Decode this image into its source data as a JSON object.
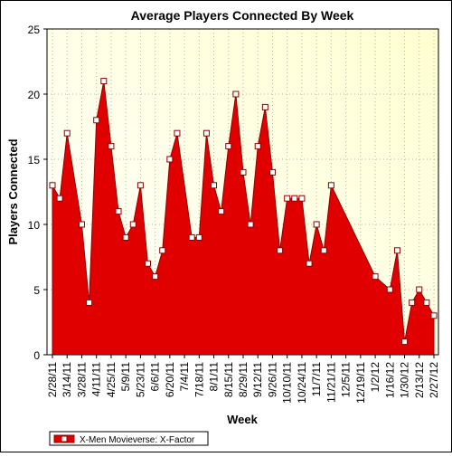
{
  "chart_data": {
    "type": "area",
    "title": "Average Players Connected By Week",
    "x_label": "Week",
    "y_label": "Players Connected",
    "x": [
      "2/28/11",
      "3/7/11",
      "3/14/11",
      "3/28/11",
      "4/4/11",
      "4/11/11",
      "4/18/11",
      "4/25/11",
      "5/2/11",
      "5/9/11",
      "5/16/11",
      "5/23/11",
      "5/30/11",
      "6/6/11",
      "6/13/11",
      "6/20/11",
      "6/27/11",
      "7/11/11",
      "7/18/11",
      "7/25/11",
      "8/1/11",
      "8/8/11",
      "8/15/11",
      "8/22/11",
      "8/29/11",
      "9/5/11",
      "9/12/11",
      "9/19/11",
      "9/26/11",
      "10/3/11",
      "10/10/11",
      "10/17/11",
      "10/24/11",
      "10/31/11",
      "11/7/11",
      "11/14/11",
      "11/21/11",
      "1/2/12",
      "1/16/12",
      "1/23/12",
      "1/30/12",
      "2/6/12",
      "2/13/12",
      "2/20/12",
      "2/27/12"
    ],
    "series": [
      {
        "name": "X-Men Movieverse: X-Factor",
        "color": "#e00000",
        "values": [
          13,
          12,
          17,
          10,
          4,
          18,
          21,
          16,
          11,
          9,
          10,
          13,
          7,
          6,
          8,
          15,
          17,
          9,
          9,
          17,
          13,
          11,
          16,
          20,
          14,
          10,
          16,
          19,
          14,
          8,
          12,
          12,
          12,
          7,
          10,
          8,
          13,
          6,
          5,
          8,
          1,
          4,
          5,
          4,
          3
        ]
      }
    ],
    "xlim": [
      "2/28/11",
      "2/27/12"
    ],
    "xticks": [
      "2/28/11",
      "3/14/11",
      "3/28/11",
      "4/11/11",
      "4/25/11",
      "5/9/11",
      "5/23/11",
      "6/6/11",
      "6/20/11",
      "7/4/11",
      "7/18/11",
      "8/1/11",
      "8/15/11",
      "8/29/11",
      "9/12/11",
      "9/26/11",
      "10/10/11",
      "10/24/11",
      "11/7/11",
      "11/21/11",
      "12/5/11",
      "12/19/11",
      "1/2/12",
      "1/16/12",
      "1/30/12",
      "2/13/12",
      "2/27/12"
    ],
    "ylim": [
      0,
      25
    ],
    "yticks": [
      0,
      5,
      10,
      15,
      20,
      25
    ],
    "grid": true
  }
}
